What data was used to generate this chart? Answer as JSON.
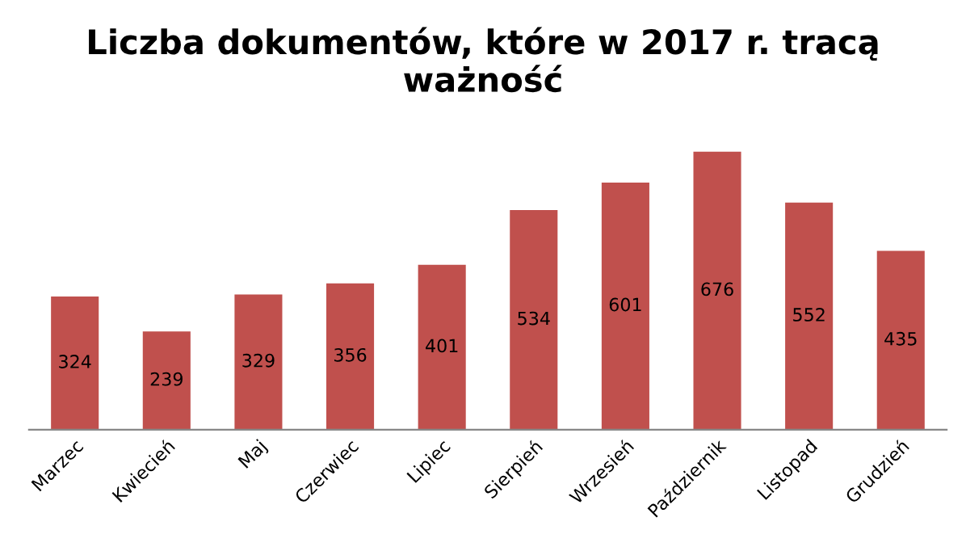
{
  "chart_data": {
    "type": "bar",
    "title": "Liczba dokumentów, które w 2017 r. tracą ważność",
    "categories": [
      "Marzec",
      "Kwiecień",
      "Maj",
      "Czerwiec",
      "Lipiec",
      "Sierpień",
      "Wrzesień",
      "Październik",
      "Listopad",
      "Grudzień"
    ],
    "values": [
      324,
      239,
      329,
      356,
      401,
      534,
      601,
      676,
      552,
      435
    ],
    "color": "#c0504d",
    "data_labels": true,
    "grid": false,
    "legend": false
  }
}
